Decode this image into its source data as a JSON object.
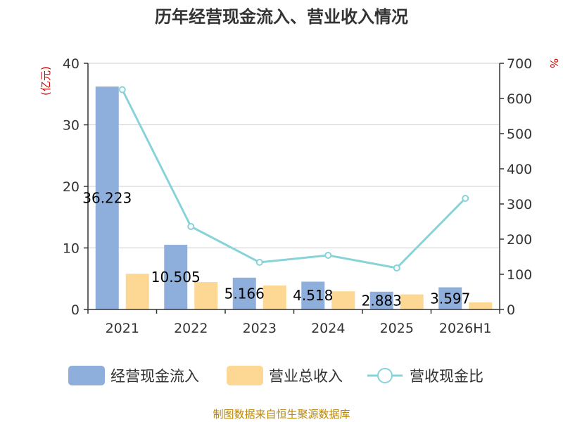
{
  "chart_data": {
    "type": "bar",
    "title": "历年经营现金流入、营业收入情况",
    "categories": [
      "2021",
      "2022",
      "2023",
      "2024",
      "2025",
      "2026H1"
    ],
    "left_axis": {
      "unit": "(亿元)",
      "ylim": [
        0,
        40
      ],
      "ticks": [
        "0",
        "10",
        "20",
        "30",
        "40"
      ]
    },
    "right_axis": {
      "unit": "%",
      "ylim": [
        0,
        700
      ],
      "ticks": [
        "0",
        "100",
        "200",
        "300",
        "400",
        "500",
        "600",
        "700"
      ]
    },
    "series": [
      {
        "name": "经营现金流入",
        "type": "bar",
        "axis": "left",
        "color": "#8eaedb",
        "values": [
          36.223,
          10.505,
          5.166,
          4.518,
          2.883,
          3.597
        ],
        "labels": [
          "36.223",
          "10.505",
          "5.166",
          "4.518",
          "2.883",
          "3.597"
        ]
      },
      {
        "name": "营业总收入",
        "type": "bar",
        "axis": "left",
        "color": "#fdd894",
        "values": [
          5.8,
          4.45,
          3.9,
          2.95,
          2.45,
          1.15
        ]
      },
      {
        "name": "营收现金比",
        "type": "line",
        "axis": "right",
        "color": "#88d3d8",
        "values": [
          625,
          236,
          134,
          154,
          118,
          316
        ]
      }
    ],
    "grid": true,
    "legend": "bottom"
  },
  "source": "制图数据来自恒生聚源数据库"
}
